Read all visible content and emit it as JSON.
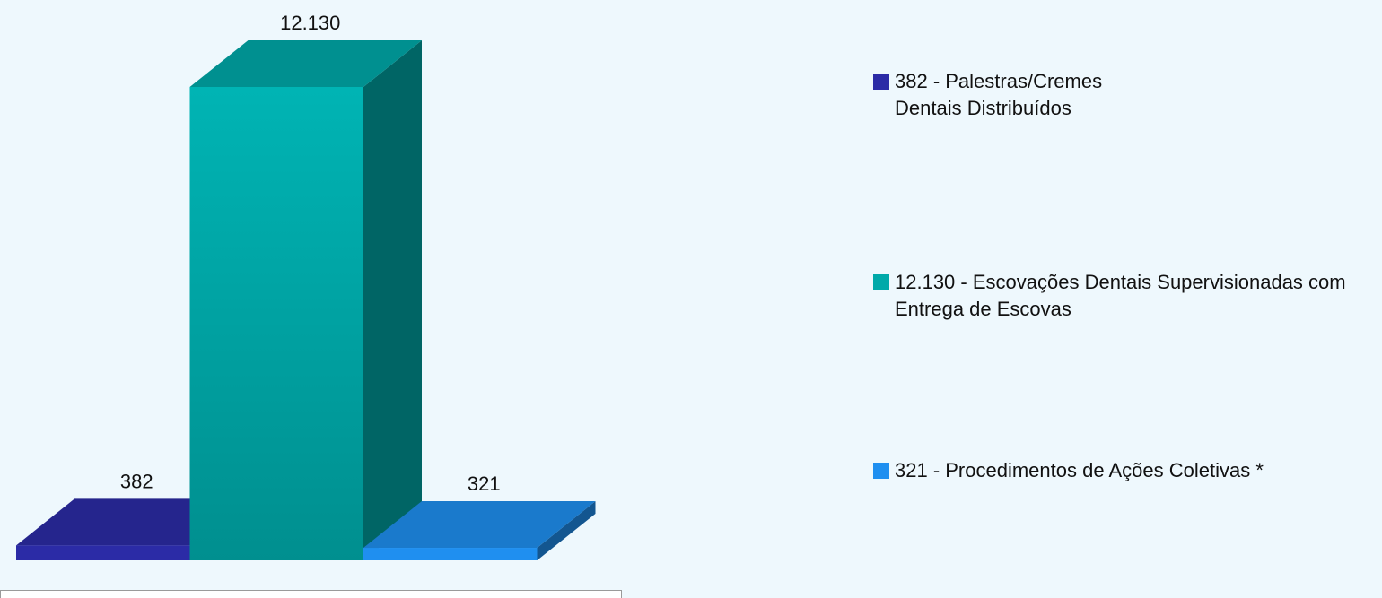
{
  "chart_data": {
    "type": "bar3d",
    "series": [
      {
        "name": "382 - Palestras/Cremes Dentais Distribuídos",
        "color": "#2b2ba6",
        "values": [
          382
        ],
        "value_labels": [
          "382"
        ]
      },
      {
        "name": "12.130 - Escovações Dentais Supervisionadas com Entrega de Escovas",
        "color": "#00a9a9",
        "values": [
          12130
        ],
        "value_labels": [
          "12.130"
        ]
      },
      {
        "name": "321 - Procedimentos de Ações Coletivas *",
        "color": "#1f8ff0",
        "values": [
          321
        ],
        "value_labels": [
          "321"
        ]
      }
    ]
  }
}
